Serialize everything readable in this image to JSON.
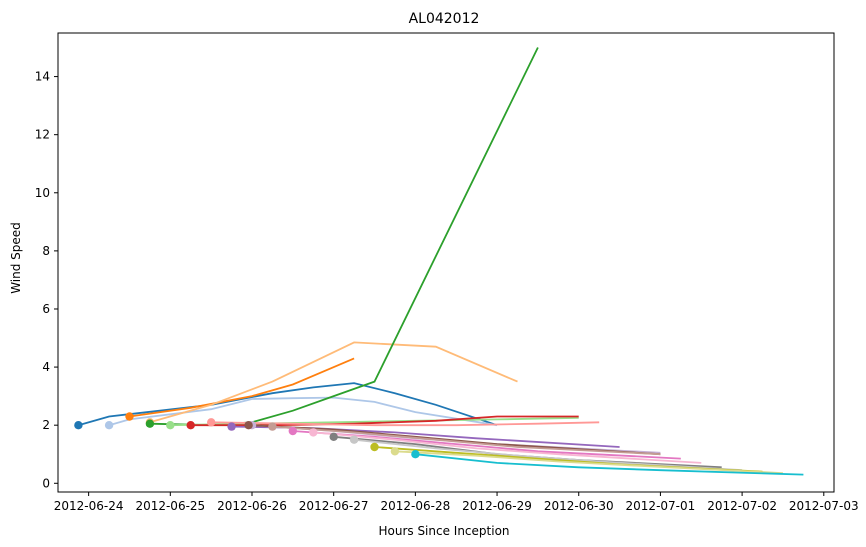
{
  "chart_data": {
    "type": "line",
    "title": "AL042012",
    "xlabel": "Hours Since Inception",
    "ylabel": "Wind Speed",
    "x_axis": "datetime",
    "x_ticks": [
      "2012-06-24",
      "2012-06-25",
      "2012-06-26",
      "2012-06-27",
      "2012-06-28",
      "2012-06-29",
      "2012-06-30",
      "2012-07-01",
      "2012-07-02",
      "2012-07-03"
    ],
    "xlim": [
      "2012-06-23 15:00",
      "2012-07-03 03:00"
    ],
    "ylim": [
      -0.3,
      15.5
    ],
    "y_ticks": [
      0,
      2,
      4,
      6,
      8,
      10,
      12,
      14
    ],
    "grid": false,
    "legend": "none",
    "series": [
      {
        "color": "#1f77b4",
        "x": [
          "2012-06-23 21:00",
          "2012-06-24 06:00",
          "2012-06-25 12:00",
          "2012-06-26 06:00",
          "2012-06-26 18:00",
          "2012-06-27 06:00",
          "2012-06-27 18:00",
          "2012-06-28 06:00",
          "2012-06-29 00:00"
        ],
        "y": [
          2.0,
          2.3,
          2.7,
          3.1,
          3.3,
          3.45,
          3.1,
          2.7,
          2.0
        ]
      },
      {
        "color": "#aec7e8",
        "x": [
          "2012-06-24 06:00",
          "2012-06-24 12:00",
          "2012-06-25 12:00",
          "2012-06-26 00:00",
          "2012-06-26 12:00",
          "2012-06-27 00:00",
          "2012-06-27 12:00",
          "2012-06-28 00:00",
          "2012-06-29 00:00"
        ],
        "y": [
          2.0,
          2.2,
          2.55,
          2.9,
          2.93,
          2.95,
          2.8,
          2.45,
          2.0
        ]
      },
      {
        "color": "#ff7f0e",
        "x": [
          "2012-06-24 12:00",
          "2012-06-24 18:00",
          "2012-06-25 06:00",
          "2012-06-26 00:00",
          "2012-06-26 12:00",
          "2012-06-27 06:00"
        ],
        "y": [
          2.3,
          2.4,
          2.6,
          3.0,
          3.4,
          4.3
        ]
      },
      {
        "color": "#ffbb78",
        "x": [
          "2012-06-24 18:00",
          "2012-06-25 12:00",
          "2012-06-26 06:00",
          "2012-06-27 06:00",
          "2012-06-28 06:00",
          "2012-06-29 06:00"
        ],
        "y": [
          2.1,
          2.7,
          3.5,
          4.85,
          4.7,
          3.5
        ]
      },
      {
        "color": "#2ca02c",
        "x": [
          "2012-06-24 18:00",
          "2012-06-25 12:00",
          "2012-06-26 00:00",
          "2012-06-26 12:00",
          "2012-06-27 00:00",
          "2012-06-27 12:00",
          "2012-06-29 12:00"
        ],
        "y": [
          2.05,
          2.0,
          2.1,
          2.5,
          3.0,
          3.5,
          15.0
        ]
      },
      {
        "color": "#98df8a",
        "x": [
          "2012-06-25 00:00",
          "2012-06-26 00:00",
          "2012-06-27 00:00",
          "2012-06-28 00:00",
          "2012-06-29 00:00",
          "2012-06-30 00:00"
        ],
        "y": [
          2.0,
          2.05,
          2.1,
          2.15,
          2.2,
          2.25
        ]
      },
      {
        "color": "#d62728",
        "x": [
          "2012-06-25 06:00",
          "2012-06-26 06:00",
          "2012-06-27 06:00",
          "2012-06-28 06:00",
          "2012-06-29 00:00",
          "2012-06-30 00:00"
        ],
        "y": [
          2.0,
          2.0,
          2.05,
          2.15,
          2.3,
          2.3
        ]
      },
      {
        "color": "#ff9896",
        "x": [
          "2012-06-25 12:00",
          "2012-06-26 12:00",
          "2012-06-27 12:00",
          "2012-06-28 12:00",
          "2012-06-29 12:00",
          "2012-06-30 06:00"
        ],
        "y": [
          2.1,
          2.05,
          2.0,
          2.0,
          2.05,
          2.1
        ]
      },
      {
        "color": "#9467bd",
        "x": [
          "2012-06-25 18:00",
          "2012-06-26 18:00",
          "2012-06-27 18:00",
          "2012-06-28 18:00",
          "2012-06-30 12:00"
        ],
        "y": [
          1.95,
          1.9,
          1.75,
          1.55,
          1.25
        ]
      },
      {
        "color": "#c5b0d5",
        "x": [
          "2012-06-26 00:00",
          "2012-06-27 00:00",
          "2012-06-28 00:00",
          "2012-06-29 00:00",
          "2012-07-01 00:00"
        ],
        "y": [
          2.0,
          1.8,
          1.55,
          1.35,
          1.05
        ]
      },
      {
        "color": "#8c564b",
        "x": [
          "2012-06-25 23:00",
          "2012-06-27 00:00",
          "2012-06-28 00:00",
          "2012-06-29 00:00",
          "2012-07-01 00:00"
        ],
        "y": [
          2.0,
          1.85,
          1.6,
          1.35,
          1.0
        ]
      },
      {
        "color": "#c49c94",
        "x": [
          "2012-06-26 06:00",
          "2012-06-27 06:00",
          "2012-06-28 06:00",
          "2012-06-29 06:00",
          "2012-07-01 00:00"
        ],
        "y": [
          1.95,
          1.75,
          1.5,
          1.25,
          1.0
        ]
      },
      {
        "color": "#e377c2",
        "x": [
          "2012-06-26 12:00",
          "2012-06-27 12:00",
          "2012-06-28 12:00",
          "2012-06-29 12:00",
          "2012-07-01 06:00"
        ],
        "y": [
          1.8,
          1.6,
          1.35,
          1.1,
          0.85
        ]
      },
      {
        "color": "#f7b6d2",
        "x": [
          "2012-06-26 18:00",
          "2012-06-27 18:00",
          "2012-06-28 18:00",
          "2012-06-29 18:00",
          "2012-07-01 12:00"
        ],
        "y": [
          1.75,
          1.5,
          1.2,
          1.0,
          0.7
        ]
      },
      {
        "color": "#7f7f7f",
        "x": [
          "2012-06-27 00:00",
          "2012-06-28 00:00",
          "2012-06-29 00:00",
          "2012-06-30 00:00",
          "2012-07-01 18:00"
        ],
        "y": [
          1.6,
          1.35,
          1.0,
          0.8,
          0.55
        ]
      },
      {
        "color": "#c7c7c7",
        "x": [
          "2012-06-27 06:00",
          "2012-06-28 06:00",
          "2012-06-29 06:00",
          "2012-06-30 06:00",
          "2012-07-02 00:00"
        ],
        "y": [
          1.5,
          1.2,
          0.95,
          0.75,
          0.45
        ]
      },
      {
        "color": "#bcbd22",
        "x": [
          "2012-06-27 12:00",
          "2012-06-28 12:00",
          "2012-06-29 12:00",
          "2012-06-30 12:00",
          "2012-07-02 06:00"
        ],
        "y": [
          1.25,
          1.05,
          0.85,
          0.65,
          0.4
        ]
      },
      {
        "color": "#dbdb8d",
        "x": [
          "2012-06-27 18:00",
          "2012-06-28 18:00",
          "2012-06-29 18:00",
          "2012-06-30 18:00",
          "2012-07-02 12:00"
        ],
        "y": [
          1.1,
          0.95,
          0.75,
          0.6,
          0.35
        ]
      },
      {
        "color": "#17becf",
        "x": [
          "2012-06-28 00:00",
          "2012-06-29 00:00",
          "2012-06-30 00:00",
          "2012-07-01 00:00",
          "2012-07-02 18:00"
        ],
        "y": [
          1.0,
          0.7,
          0.55,
          0.45,
          0.3
        ]
      }
    ]
  }
}
